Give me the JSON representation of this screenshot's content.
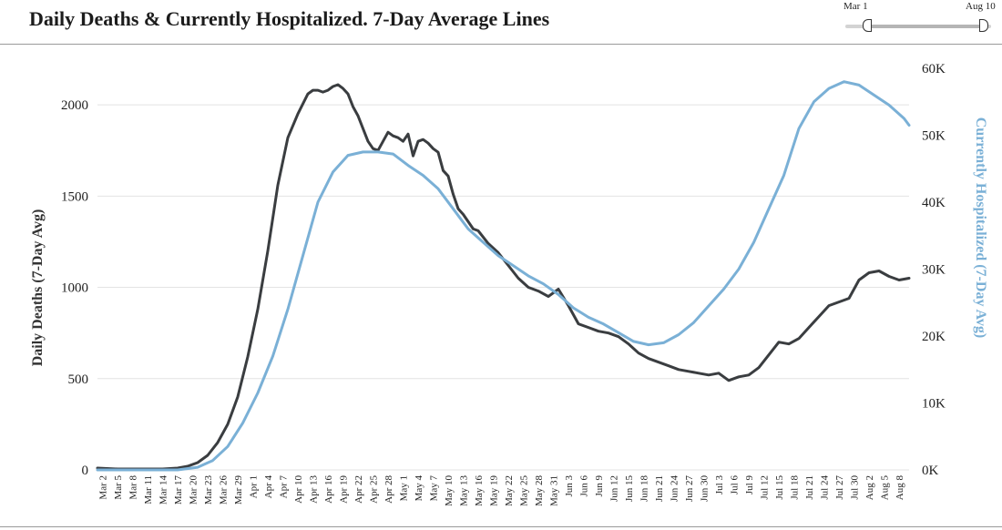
{
  "header": {
    "title": "Daily Deaths & Currently Hospitalized. 7-Day Average Lines"
  },
  "range_slider": {
    "start_label": "Mar 1",
    "end_label": "Aug 10"
  },
  "chart_data": {
    "type": "line",
    "title": "Daily Deaths & Currently Hospitalized. 7-Day Average Lines",
    "ylabel": "Daily Deaths (7-Day Avg)",
    "ylabel_right": "Currently Hospitalized (7-Day Avg)",
    "ylim": [
      0,
      2200
    ],
    "ylim_right": [
      0,
      60000
    ],
    "yticks": [
      "0",
      "500",
      "1000",
      "1500",
      "2000"
    ],
    "yticks_right": [
      "0K",
      "10K",
      "20K",
      "30K",
      "40K",
      "50K",
      "60K"
    ],
    "grid": true,
    "xlim": [
      "2020-03-01",
      "2020-08-10"
    ],
    "x_tick_labels": [
      "Mar 2",
      "Mar 5",
      "Mar 8",
      "Mar 11",
      "Mar 14",
      "Mar 17",
      "Mar 20",
      "Mar 23",
      "Mar 26",
      "Mar 29",
      "Apr 1",
      "Apr 4",
      "Apr 7",
      "Apr 10",
      "Apr 13",
      "Apr 16",
      "Apr 19",
      "Apr 22",
      "Apr 25",
      "Apr 28",
      "May 1",
      "May 4",
      "May 7",
      "May 10",
      "May 13",
      "May 16",
      "May 19",
      "May 22",
      "May 25",
      "May 28",
      "May 31",
      "Jun 3",
      "Jun 6",
      "Jun 9",
      "Jun 12",
      "Jun 15",
      "Jun 18",
      "Jun 21",
      "Jun 24",
      "Jun 27",
      "Jun 30",
      "Jul 3",
      "Jul 6",
      "Jul 9",
      "Jul 12",
      "Jul 15",
      "Jul 18",
      "Jul 21",
      "Jul 24",
      "Jul 27",
      "Jul 30",
      "Aug 2",
      "Aug 5",
      "Aug 8"
    ],
    "colors": {
      "deaths": "#3a3d40",
      "hospitalized": "#7ab0d6"
    },
    "series": [
      {
        "name": "Daily Deaths (7-Day Avg)",
        "axis": "left",
        "x": [
          "2020-03-01",
          "2020-03-05",
          "2020-03-10",
          "2020-03-14",
          "2020-03-17",
          "2020-03-19",
          "2020-03-21",
          "2020-03-23",
          "2020-03-25",
          "2020-03-27",
          "2020-03-29",
          "2020-03-31",
          "2020-04-02",
          "2020-04-04",
          "2020-04-06",
          "2020-04-08",
          "2020-04-10",
          "2020-04-12",
          "2020-04-13",
          "2020-04-14",
          "2020-04-15",
          "2020-04-16",
          "2020-04-17",
          "2020-04-18",
          "2020-04-19",
          "2020-04-20",
          "2020-04-21",
          "2020-04-22",
          "2020-04-23",
          "2020-04-24",
          "2020-04-25",
          "2020-04-26",
          "2020-04-27",
          "2020-04-28",
          "2020-04-29",
          "2020-04-30",
          "2020-05-01",
          "2020-05-02",
          "2020-05-03",
          "2020-05-04",
          "2020-05-05",
          "2020-05-06",
          "2020-05-07",
          "2020-05-08",
          "2020-05-09",
          "2020-05-10",
          "2020-05-11",
          "2020-05-12",
          "2020-05-13",
          "2020-05-14",
          "2020-05-15",
          "2020-05-16",
          "2020-05-18",
          "2020-05-20",
          "2020-05-22",
          "2020-05-24",
          "2020-05-26",
          "2020-05-28",
          "2020-05-30",
          "2020-06-01",
          "2020-06-03",
          "2020-06-05",
          "2020-06-07",
          "2020-06-09",
          "2020-06-11",
          "2020-06-13",
          "2020-06-15",
          "2020-06-17",
          "2020-06-19",
          "2020-06-21",
          "2020-06-23",
          "2020-06-25",
          "2020-06-27",
          "2020-06-29",
          "2020-07-01",
          "2020-07-03",
          "2020-07-05",
          "2020-07-07",
          "2020-07-09",
          "2020-07-11",
          "2020-07-13",
          "2020-07-15",
          "2020-07-17",
          "2020-07-19",
          "2020-07-21",
          "2020-07-23",
          "2020-07-25",
          "2020-07-27",
          "2020-07-29",
          "2020-07-31",
          "2020-08-02",
          "2020-08-04",
          "2020-08-06",
          "2020-08-08",
          "2020-08-10"
        ],
        "values": [
          10,
          5,
          5,
          5,
          10,
          20,
          40,
          80,
          150,
          250,
          400,
          620,
          880,
          1200,
          1560,
          1820,
          1950,
          2060,
          2080,
          2080,
          2070,
          2080,
          2100,
          2110,
          2090,
          2060,
          1990,
          1940,
          1870,
          1800,
          1760,
          1750,
          1800,
          1850,
          1830,
          1820,
          1800,
          1840,
          1720,
          1800,
          1810,
          1790,
          1760,
          1740,
          1640,
          1610,
          1510,
          1430,
          1400,
          1360,
          1320,
          1310,
          1240,
          1190,
          1120,
          1050,
          1000,
          980,
          950,
          990,
          900,
          800,
          780,
          760,
          750,
          730,
          690,
          640,
          610,
          590,
          570,
          550,
          540,
          530,
          520,
          530,
          490,
          510,
          520,
          560,
          630,
          700,
          690,
          720,
          780,
          840,
          900,
          920,
          940,
          1040,
          1080,
          1090,
          1060,
          1040,
          1050
        ]
      },
      {
        "name": "Currently Hospitalized (7-Day Avg)",
        "axis": "right",
        "x": [
          "2020-03-01",
          "2020-03-10",
          "2020-03-17",
          "2020-03-21",
          "2020-03-24",
          "2020-03-27",
          "2020-03-30",
          "2020-04-02",
          "2020-04-05",
          "2020-04-08",
          "2020-04-11",
          "2020-04-14",
          "2020-04-17",
          "2020-04-20",
          "2020-04-23",
          "2020-04-26",
          "2020-04-29",
          "2020-05-02",
          "2020-05-05",
          "2020-05-08",
          "2020-05-11",
          "2020-05-14",
          "2020-05-17",
          "2020-05-20",
          "2020-05-23",
          "2020-05-26",
          "2020-05-29",
          "2020-06-01",
          "2020-06-04",
          "2020-06-07",
          "2020-06-10",
          "2020-06-13",
          "2020-06-16",
          "2020-06-19",
          "2020-06-22",
          "2020-06-25",
          "2020-06-28",
          "2020-07-01",
          "2020-07-04",
          "2020-07-07",
          "2020-07-10",
          "2020-07-13",
          "2020-07-16",
          "2020-07-19",
          "2020-07-22",
          "2020-07-25",
          "2020-07-28",
          "2020-07-31",
          "2020-08-03",
          "2020-08-06",
          "2020-08-09",
          "2020-08-10"
        ],
        "values": [
          0,
          0,
          0,
          400,
          1400,
          3500,
          7000,
          11500,
          17000,
          24000,
          32000,
          40000,
          44500,
          47000,
          47500,
          47500,
          47200,
          45500,
          44000,
          42000,
          39000,
          36000,
          34000,
          32000,
          30500,
          29000,
          27800,
          26200,
          24200,
          22800,
          21800,
          20500,
          19200,
          18700,
          19000,
          20200,
          22000,
          24500,
          27000,
          30000,
          34000,
          39000,
          44000,
          51000,
          55000,
          57000,
          58000,
          57500,
          56000,
          54500,
          52500,
          51500
        ]
      }
    ]
  }
}
